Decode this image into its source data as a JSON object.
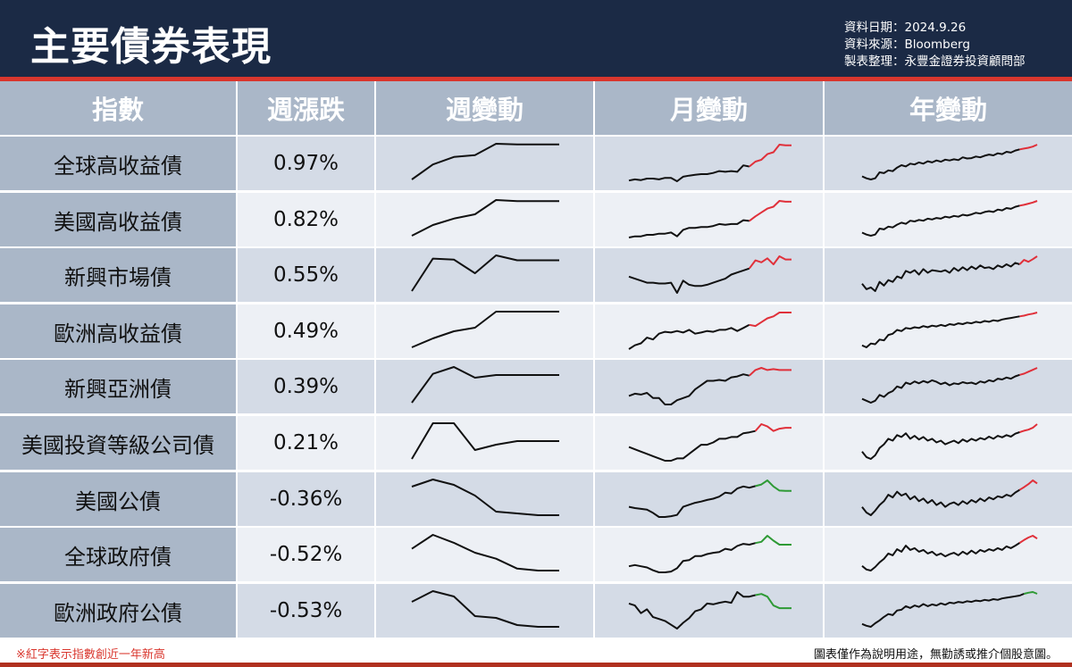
{
  "header": {
    "title": "主要債券表現",
    "data_date": "資料日期：2024.9.26",
    "data_source": "資料來源：Bloomberg",
    "compiled_by": "製表整理：永豐金證券投資顧問部"
  },
  "table": {
    "columns": [
      "指數",
      "週漲跌",
      "週變動",
      "月變動",
      "年變動"
    ]
  },
  "footer": {
    "note": "※紅字表示指數創近一年新高",
    "disclaimer": "圖表僅作為說明用途，無勸誘或推介個股意圖。"
  },
  "colors": {
    "header_bg": "#1b2a45",
    "accent_red": "#d9362d",
    "line_black": "#111111",
    "new_high_red": "#e0303a",
    "recent_decline_green": "#2e9a35"
  },
  "chart_data": {
    "type": "table",
    "note": "Sparkline values are relative index levels (no printed axes); highlight = segment color at series end.",
    "rows": [
      {
        "name": "全球高收益債",
        "weekly_change": "0.97%",
        "week": [
          0,
          0.42,
          0.63,
          0.68,
          1.0,
          0.98,
          0.98,
          0.98
        ],
        "month": [
          0.05,
          0.08,
          0.06,
          0.1,
          0.1,
          0.08,
          0.12,
          0.12,
          0.03,
          0.15,
          0.18,
          0.2,
          0.22,
          0.22,
          0.25,
          0.3,
          0.28,
          0.3,
          0.28,
          0.45,
          0.42,
          0.55,
          0.6,
          0.75,
          0.8,
          1.0,
          0.98,
          0.98
        ],
        "month_highlight": "red",
        "month_highlight_from": 20,
        "year": [
          0.2,
          0.15,
          0.12,
          0.15,
          0.3,
          0.28,
          0.35,
          0.33,
          0.42,
          0.48,
          0.45,
          0.52,
          0.5,
          0.55,
          0.52,
          0.58,
          0.55,
          0.6,
          0.57,
          0.62,
          0.6,
          0.63,
          0.61,
          0.68,
          0.65,
          0.66,
          0.7,
          0.68,
          0.72,
          0.75,
          0.73,
          0.78,
          0.76,
          0.82,
          0.8,
          0.85,
          0.88,
          0.9,
          0.92,
          0.95,
          1.0
        ],
        "year_highlight": "red",
        "year_highlight_from": 36
      },
      {
        "name": "美國高收益債",
        "weekly_change": "0.82%",
        "week": [
          0,
          0.3,
          0.48,
          0.6,
          1.0,
          0.97,
          0.97,
          0.97
        ],
        "month": [
          0.05,
          0.08,
          0.08,
          0.12,
          0.12,
          0.15,
          0.15,
          0.18,
          0.08,
          0.25,
          0.3,
          0.3,
          0.32,
          0.32,
          0.35,
          0.4,
          0.38,
          0.4,
          0.4,
          0.5,
          0.48,
          0.6,
          0.7,
          0.8,
          0.85,
          1.0,
          0.98,
          0.98
        ],
        "month_highlight": "red",
        "month_highlight_from": 20,
        "year": [
          0.2,
          0.15,
          0.12,
          0.15,
          0.3,
          0.28,
          0.35,
          0.33,
          0.4,
          0.45,
          0.42,
          0.5,
          0.48,
          0.52,
          0.5,
          0.55,
          0.53,
          0.57,
          0.55,
          0.6,
          0.58,
          0.62,
          0.6,
          0.65,
          0.63,
          0.66,
          0.7,
          0.68,
          0.72,
          0.74,
          0.72,
          0.78,
          0.76,
          0.82,
          0.8,
          0.85,
          0.88,
          0.9,
          0.93,
          0.96,
          1.0
        ],
        "year_highlight": "red",
        "year_highlight_from": 36
      },
      {
        "name": "新興市場債",
        "weekly_change": "0.55%",
        "week": [
          0,
          1.0,
          0.97,
          0.55,
          1.1,
          0.95,
          0.95,
          0.95
        ],
        "month": [
          0.55,
          0.5,
          0.45,
          0.4,
          0.4,
          0.38,
          0.38,
          0.4,
          0.15,
          0.45,
          0.35,
          0.32,
          0.32,
          0.35,
          0.4,
          0.45,
          0.5,
          0.6,
          0.65,
          0.7,
          0.75,
          0.95,
          0.9,
          1.0,
          0.85,
          1.05,
          0.97,
          0.97
        ],
        "month_highlight": "red",
        "month_highlight_from": 20,
        "year": [
          0.25,
          0.1,
          0.15,
          0.05,
          0.3,
          0.2,
          0.35,
          0.3,
          0.45,
          0.4,
          0.6,
          0.55,
          0.62,
          0.5,
          0.65,
          0.55,
          0.62,
          0.6,
          0.58,
          0.62,
          0.55,
          0.68,
          0.6,
          0.7,
          0.62,
          0.72,
          0.65,
          0.75,
          0.68,
          0.7,
          0.65,
          0.75,
          0.7,
          0.78,
          0.72,
          0.82,
          0.78,
          0.9,
          0.85,
          0.92,
          1.0
        ],
        "year_highlight": "red",
        "year_highlight_from": 36
      },
      {
        "name": "歐洲高收益債",
        "weekly_change": "0.49%",
        "week": [
          0,
          0.25,
          0.45,
          0.55,
          1.0,
          1.0,
          1.0,
          1.0
        ],
        "month": [
          0.05,
          0.15,
          0.2,
          0.35,
          0.3,
          0.45,
          0.5,
          0.48,
          0.52,
          0.48,
          0.55,
          0.45,
          0.48,
          0.52,
          0.5,
          0.55,
          0.55,
          0.6,
          0.52,
          0.6,
          0.68,
          0.65,
          0.75,
          0.85,
          0.9,
          1.0,
          1.0,
          1.0
        ],
        "month_highlight": "red",
        "month_highlight_from": 20,
        "year": [
          0.15,
          0.1,
          0.2,
          0.18,
          0.3,
          0.28,
          0.42,
          0.45,
          0.55,
          0.52,
          0.6,
          0.58,
          0.62,
          0.6,
          0.65,
          0.62,
          0.66,
          0.64,
          0.68,
          0.65,
          0.7,
          0.68,
          0.72,
          0.7,
          0.74,
          0.72,
          0.76,
          0.74,
          0.78,
          0.76,
          0.8,
          0.78,
          0.82,
          0.84,
          0.86,
          0.88,
          0.9,
          0.92,
          0.95,
          0.97,
          1.0
        ],
        "year_highlight": "red",
        "year_highlight_from": 36
      },
      {
        "name": "新興亞洲債",
        "weekly_change": "0.39%",
        "week": [
          0,
          0.75,
          0.93,
          0.65,
          0.72,
          0.72,
          0.72,
          0.72
        ],
        "month": [
          0.35,
          0.4,
          0.38,
          0.42,
          0.3,
          0.3,
          0.15,
          0.15,
          0.25,
          0.3,
          0.35,
          0.5,
          0.6,
          0.7,
          0.7,
          0.72,
          0.7,
          0.78,
          0.8,
          0.85,
          0.82,
          0.95,
          1.0,
          0.95,
          0.97,
          0.95,
          0.95,
          0.95
        ],
        "month_highlight": "red",
        "month_highlight_from": 20,
        "year": [
          0.2,
          0.15,
          0.1,
          0.15,
          0.3,
          0.25,
          0.35,
          0.4,
          0.52,
          0.48,
          0.62,
          0.58,
          0.65,
          0.6,
          0.66,
          0.62,
          0.68,
          0.64,
          0.58,
          0.62,
          0.55,
          0.6,
          0.58,
          0.63,
          0.6,
          0.62,
          0.58,
          0.65,
          0.62,
          0.68,
          0.65,
          0.72,
          0.7,
          0.75,
          0.72,
          0.78,
          0.82,
          0.85,
          0.9,
          0.95,
          1.0
        ],
        "year_highlight": "red",
        "year_highlight_from": 36
      },
      {
        "name": "美國投資等級公司債",
        "weekly_change": "0.21%",
        "week": [
          0,
          1.0,
          1.0,
          0.25,
          0.4,
          0.5,
          0.5,
          0.5
        ],
        "month": [
          0.5,
          0.45,
          0.4,
          0.35,
          0.3,
          0.25,
          0.2,
          0.2,
          0.25,
          0.25,
          0.35,
          0.45,
          0.55,
          0.55,
          0.6,
          0.68,
          0.68,
          0.72,
          0.72,
          0.8,
          0.82,
          0.85,
          1.0,
          0.95,
          0.85,
          0.9,
          0.92,
          0.92
        ],
        "month_highlight": "red",
        "month_highlight_from": 21,
        "year": [
          0.25,
          0.1,
          0.05,
          0.15,
          0.35,
          0.45,
          0.6,
          0.55,
          0.7,
          0.65,
          0.75,
          0.6,
          0.68,
          0.58,
          0.65,
          0.55,
          0.6,
          0.5,
          0.55,
          0.45,
          0.5,
          0.55,
          0.48,
          0.58,
          0.52,
          0.6,
          0.55,
          0.62,
          0.58,
          0.66,
          0.6,
          0.68,
          0.64,
          0.7,
          0.66,
          0.74,
          0.78,
          0.82,
          0.85,
          0.9,
          1.0
        ],
        "year_highlight": "red",
        "year_highlight_from": 36
      },
      {
        "name": "美國公債",
        "weekly_change": "-0.36%",
        "week": [
          0.8,
          1.0,
          0.85,
          0.55,
          0.1,
          0.05,
          0.0,
          0.0
        ],
        "month": [
          0.35,
          0.32,
          0.3,
          0.28,
          0.2,
          0.1,
          0.1,
          0.12,
          0.15,
          0.35,
          0.4,
          0.45,
          0.48,
          0.52,
          0.55,
          0.6,
          0.7,
          0.68,
          0.8,
          0.85,
          0.82,
          0.86,
          0.9,
          1.0,
          0.85,
          0.75,
          0.74,
          0.74
        ],
        "month_highlight": "green",
        "month_highlight_from": 21,
        "year": [
          0.3,
          0.15,
          0.08,
          0.2,
          0.35,
          0.45,
          0.62,
          0.55,
          0.7,
          0.6,
          0.65,
          0.5,
          0.58,
          0.45,
          0.52,
          0.4,
          0.48,
          0.35,
          0.42,
          0.3,
          0.38,
          0.42,
          0.35,
          0.45,
          0.38,
          0.48,
          0.42,
          0.52,
          0.45,
          0.55,
          0.5,
          0.58,
          0.55,
          0.62,
          0.58,
          0.68,
          0.75,
          0.82,
          0.9,
          1.0,
          0.92
        ],
        "year_highlight": "red",
        "year_highlight_from": 36
      },
      {
        "name": "全球政府債",
        "weekly_change": "-0.52%",
        "week": [
          0.65,
          1.0,
          0.8,
          0.55,
          0.4,
          0.15,
          0.1,
          0.1
        ],
        "month": [
          0.25,
          0.28,
          0.25,
          0.22,
          0.15,
          0.1,
          0.1,
          0.12,
          0.2,
          0.38,
          0.4,
          0.5,
          0.5,
          0.55,
          0.58,
          0.6,
          0.68,
          0.65,
          0.75,
          0.8,
          0.78,
          0.82,
          0.85,
          1.0,
          0.88,
          0.78,
          0.78,
          0.78
        ],
        "month_highlight": "green",
        "month_highlight_from": 21,
        "year": [
          0.15,
          0.05,
          0.02,
          0.12,
          0.25,
          0.35,
          0.5,
          0.45,
          0.62,
          0.55,
          0.72,
          0.6,
          0.65,
          0.55,
          0.6,
          0.5,
          0.55,
          0.45,
          0.5,
          0.42,
          0.48,
          0.52,
          0.45,
          0.55,
          0.48,
          0.58,
          0.5,
          0.6,
          0.55,
          0.62,
          0.58,
          0.65,
          0.6,
          0.7,
          0.65,
          0.72,
          0.8,
          0.88,
          0.95,
          1.0,
          0.92
        ],
        "year_highlight": "red",
        "year_highlight_from": 36
      },
      {
        "name": "歐洲政府公債",
        "weekly_change": "-0.53%",
        "week": [
          0.7,
          1.0,
          0.85,
          0.3,
          0.25,
          0.05,
          0.0,
          0.0
        ],
        "month": [
          0.7,
          0.65,
          0.45,
          0.55,
          0.35,
          0.3,
          0.25,
          0.15,
          0.05,
          0.2,
          0.32,
          0.5,
          0.55,
          0.7,
          0.68,
          0.72,
          0.75,
          0.72,
          1.0,
          0.88,
          0.88,
          0.92,
          0.95,
          0.88,
          0.65,
          0.58,
          0.58,
          0.58
        ],
        "month_highlight": "green",
        "month_highlight_from": 21,
        "year": [
          0.1,
          0.05,
          0.02,
          0.12,
          0.2,
          0.3,
          0.38,
          0.35,
          0.48,
          0.5,
          0.6,
          0.55,
          0.62,
          0.58,
          0.66,
          0.6,
          0.65,
          0.62,
          0.68,
          0.64,
          0.7,
          0.68,
          0.72,
          0.7,
          0.74,
          0.72,
          0.76,
          0.74,
          0.78,
          0.76,
          0.8,
          0.78,
          0.82,
          0.84,
          0.86,
          0.88,
          0.9,
          0.95,
          0.98,
          1.0,
          0.95
        ],
        "year_highlight": "green",
        "year_highlight_from": 37
      }
    ]
  }
}
